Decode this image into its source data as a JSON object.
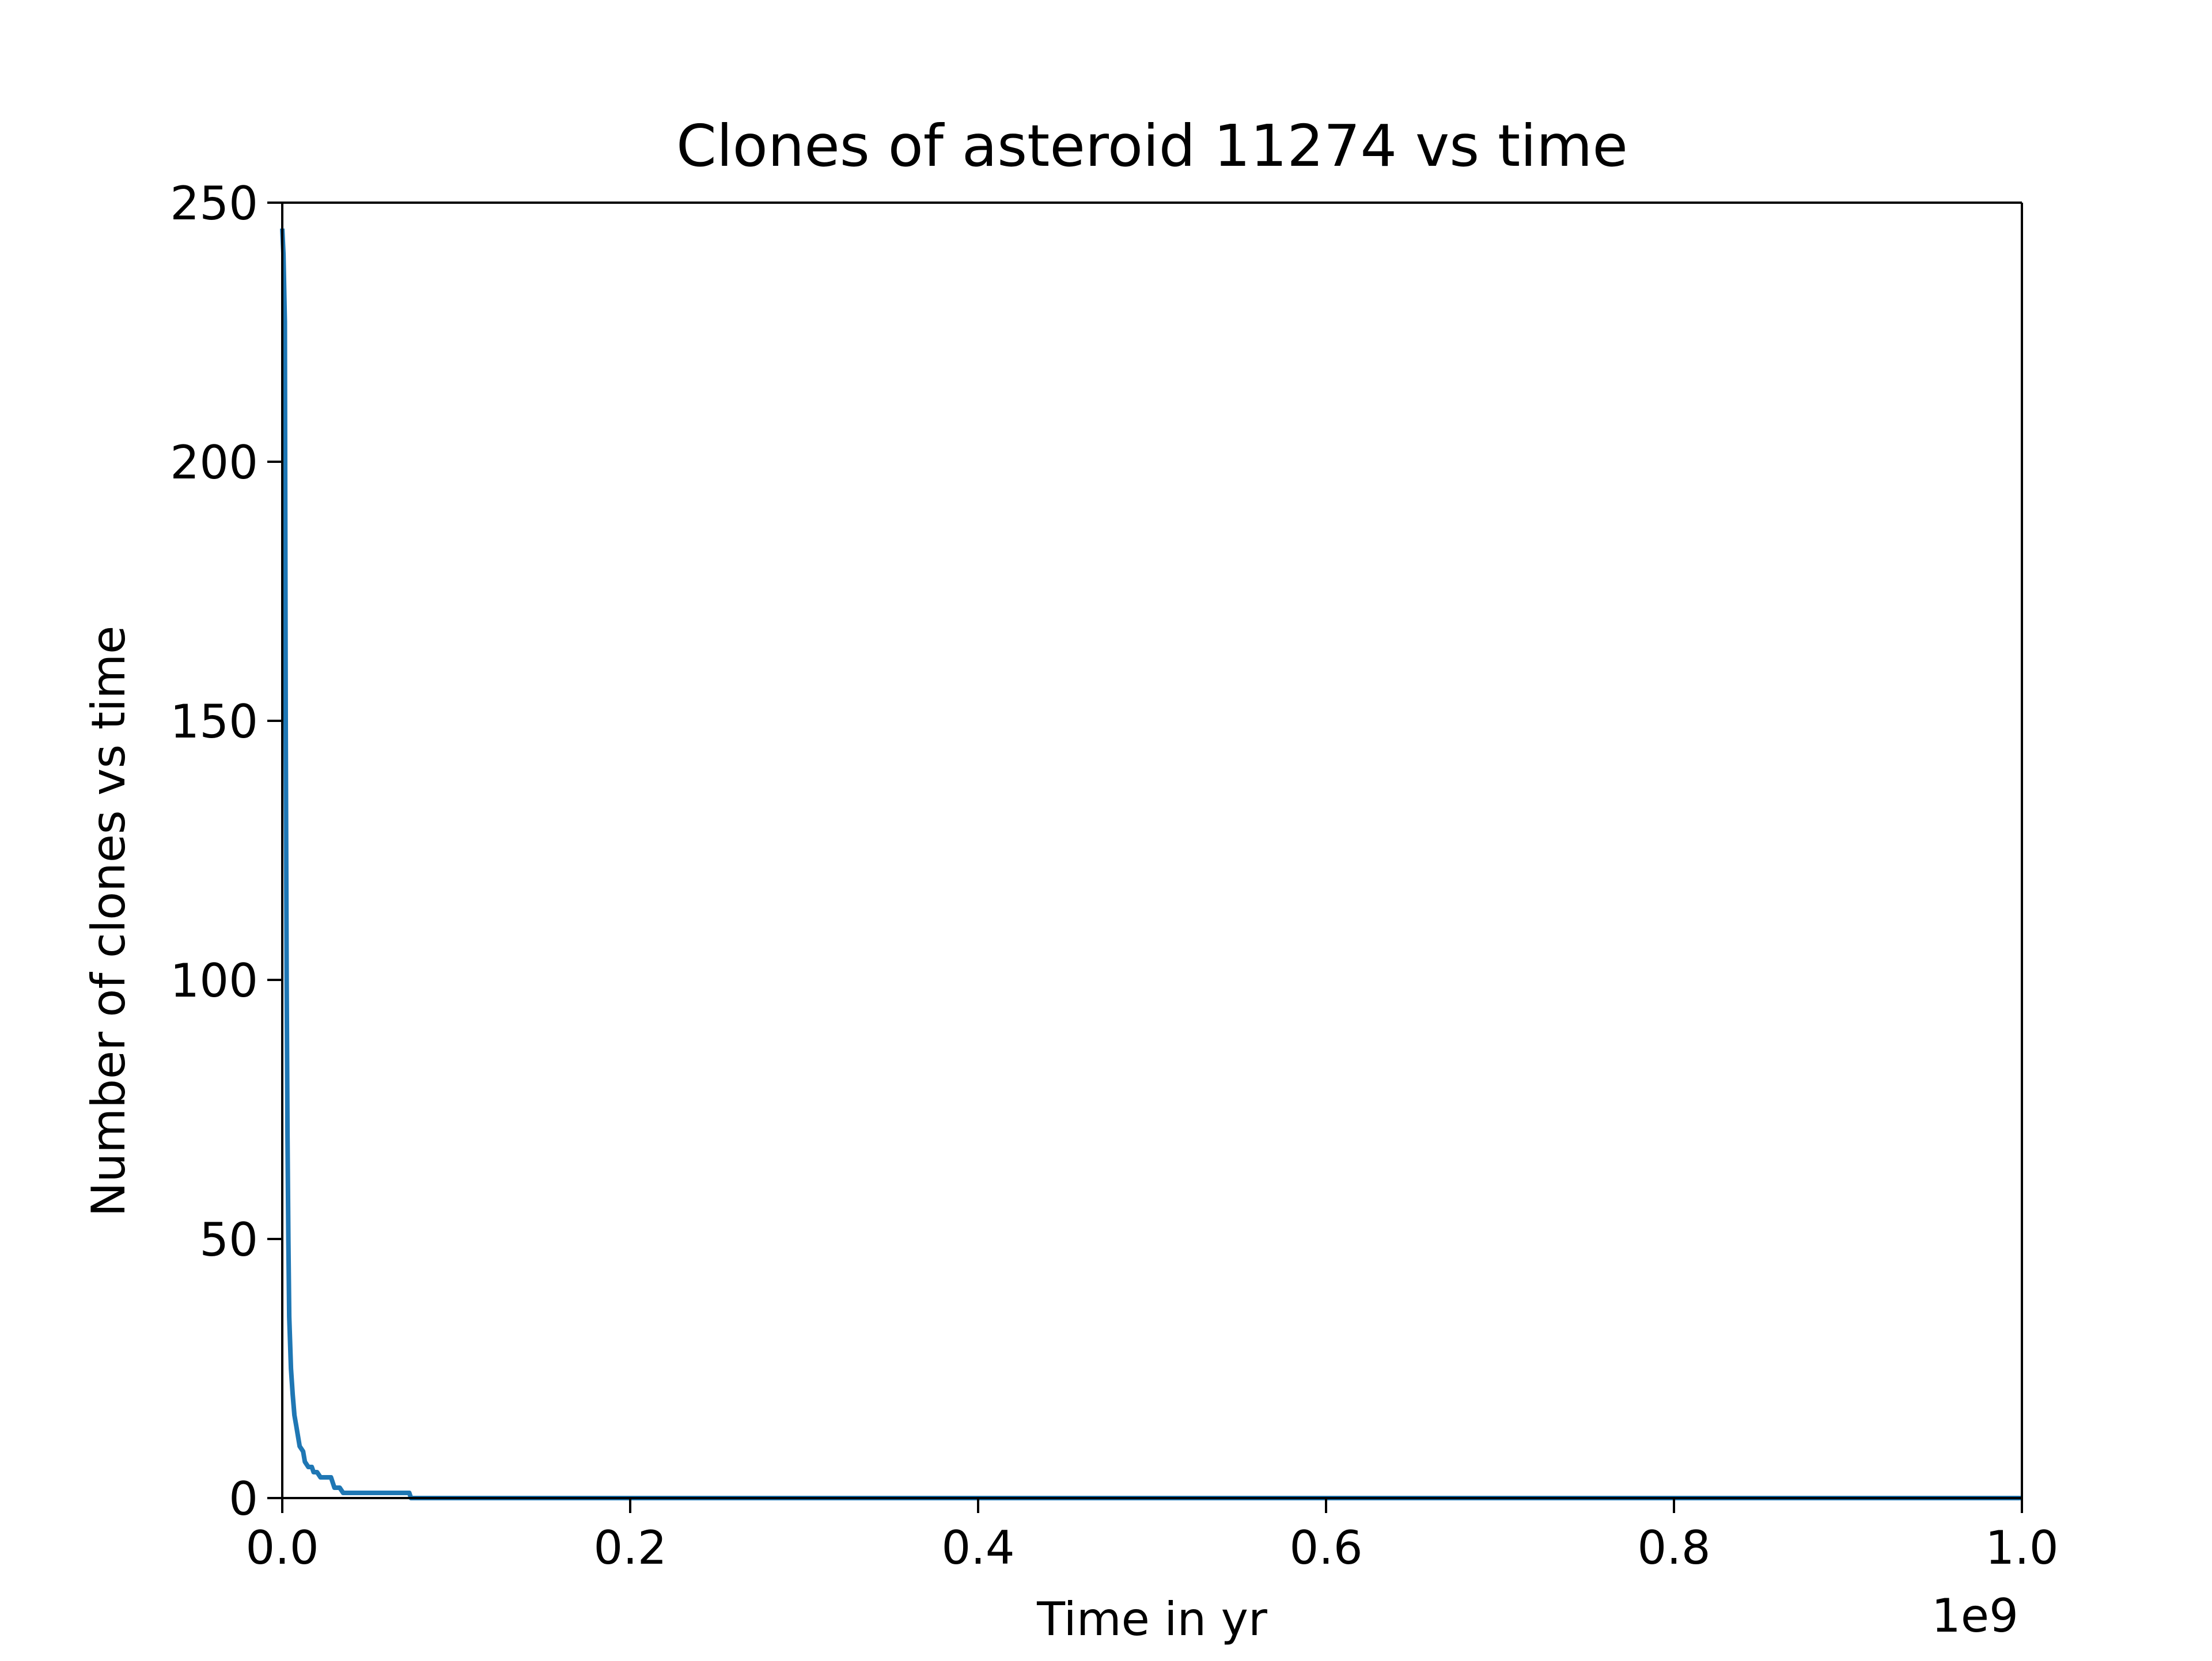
{
  "chart_data": {
    "type": "line",
    "title": "Clones of asteroid 11274 vs time",
    "xlabel": "Time in yr",
    "ylabel": "Number of clones vs time",
    "x_offset_label": "1e9",
    "xlim": [
      0.0,
      1.0
    ],
    "ylim": [
      0,
      250
    ],
    "x_ticks": [
      0.0,
      0.2,
      0.4,
      0.6,
      0.8,
      1.0
    ],
    "x_tick_labels": [
      "0.0",
      "0.2",
      "0.4",
      "0.6",
      "0.8",
      "1.0"
    ],
    "y_ticks": [
      0,
      50,
      100,
      150,
      200,
      250
    ],
    "y_tick_labels": [
      "0",
      "50",
      "100",
      "150",
      "200",
      "250"
    ],
    "grid": false,
    "series": [
      {
        "color": "#1f77b4",
        "x": [
          0.0,
          0.0007,
          0.0015,
          0.002,
          0.0025,
          0.003,
          0.0035,
          0.004,
          0.005,
          0.006,
          0.007,
          0.008,
          0.009,
          0.01,
          0.012,
          0.013,
          0.015,
          0.017,
          0.018,
          0.02,
          0.022,
          0.025,
          0.028,
          0.03,
          0.033,
          0.035,
          0.04,
          0.05,
          0.06,
          0.07,
          0.073,
          0.074,
          0.1,
          0.2,
          0.3,
          0.4,
          0.5,
          0.6,
          0.7,
          0.8,
          0.9,
          1.0
        ],
        "y": [
          245,
          240,
          227,
          150,
          100,
          70,
          50,
          35,
          25,
          20,
          16,
          14,
          12,
          10,
          9,
          7,
          6,
          6,
          5,
          5,
          4,
          4,
          4,
          2,
          2,
          1,
          1,
          1,
          1,
          1,
          1,
          0,
          0,
          0,
          0,
          0,
          0,
          0,
          0,
          0,
          0,
          0
        ]
      }
    ]
  }
}
